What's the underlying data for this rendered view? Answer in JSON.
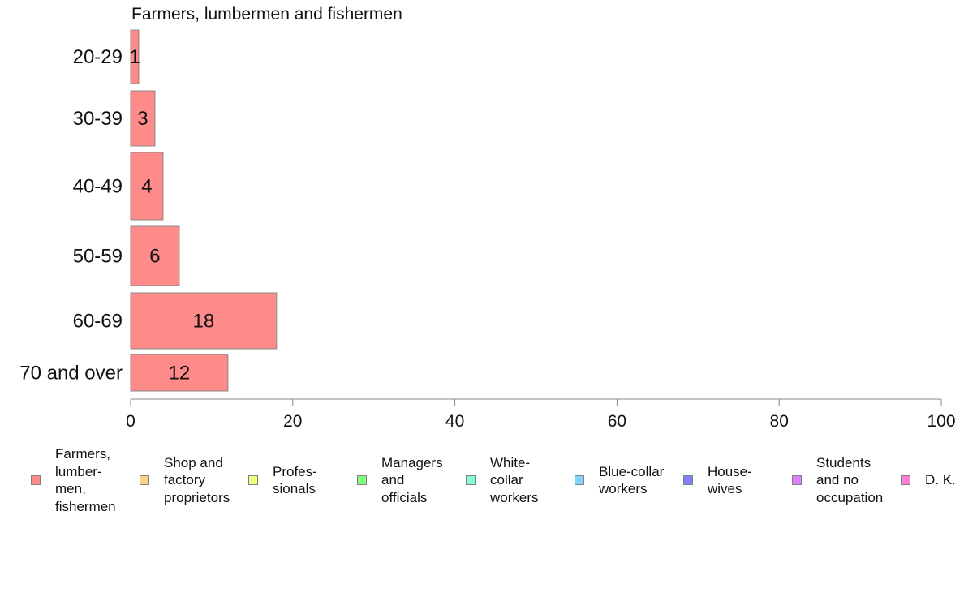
{
  "chart_data": {
    "type": "bar",
    "orientation": "horizontal",
    "title": "Farmers, lumbermen and fishermen",
    "categories": [
      "20-29",
      "30-39",
      "40-49",
      "50-59",
      "60-69",
      "70 and over"
    ],
    "values": [
      1,
      3,
      4,
      6,
      18,
      12
    ],
    "xlim": [
      0,
      100
    ],
    "xticks": [
      "0",
      "20",
      "40",
      "60",
      "80",
      "100"
    ],
    "bar_color": "#ff8a8a",
    "bar_stroke": "#888888",
    "grid": false,
    "legend_placement": "bottom",
    "legend": [
      {
        "label": "Farmers,\nlumber-\nmen,\nfishermen",
        "color": "#ff8a8a"
      },
      {
        "label": "Shop and\nfactory\nproprietors",
        "color": "#ffd27f"
      },
      {
        "label": "Profes-\nsionals",
        "color": "#e8ff80"
      },
      {
        "label": "Managers\nand\nofficials",
        "color": "#80ff80"
      },
      {
        "label": "White-\ncollar\nworkers",
        "color": "#80ffd4"
      },
      {
        "label": "Blue-collar\nworkers",
        "color": "#80d4ff"
      },
      {
        "label": "House-\nwives",
        "color": "#8080ff"
      },
      {
        "label": "Students\nand no\noccupation",
        "color": "#e080ff"
      },
      {
        "label": "D. K.",
        "color": "#ff80d4"
      }
    ]
  }
}
